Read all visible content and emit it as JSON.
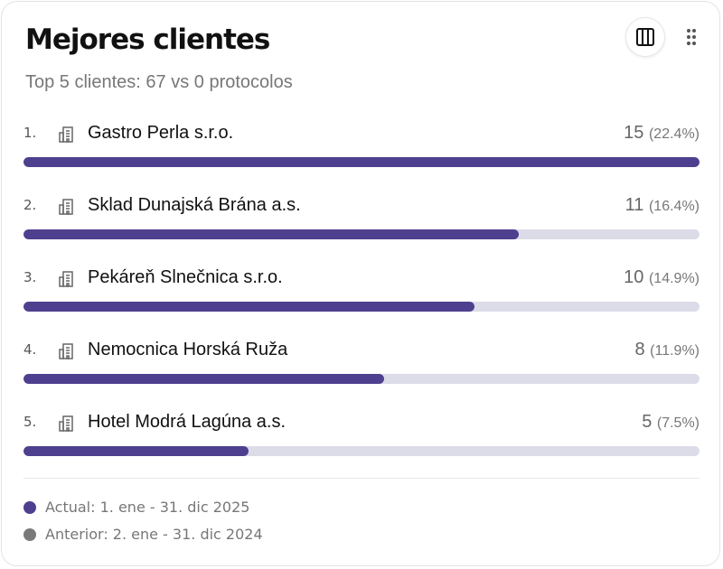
{
  "header": {
    "title": "Mejores clientes",
    "subtitle": "Top 5 clientes: 67 vs 0 protocolos",
    "column_button_icon": "columns-icon",
    "drag_handle_icon": "drag-dots-icon"
  },
  "colors": {
    "bar": "#4f3f8f",
    "track": "#dcdbe8",
    "previous": "#7a7a7a"
  },
  "clients": [
    {
      "rank": "1.",
      "name": "Gastro Perla s.r.o.",
      "value": "15",
      "pct": "(22.4%)",
      "share_of_max": 1.0
    },
    {
      "rank": "2.",
      "name": "Sklad Dunajská Brána a.s.",
      "value": "11",
      "pct": "(16.4%)",
      "share_of_max": 0.733
    },
    {
      "rank": "3.",
      "name": "Pekáreň Slnečnica s.r.o.",
      "value": "10",
      "pct": "(14.9%)",
      "share_of_max": 0.667
    },
    {
      "rank": "4.",
      "name": "Nemocnica Horská Ruža",
      "value": "8",
      "pct": "(11.9%)",
      "share_of_max": 0.533
    },
    {
      "rank": "5.",
      "name": "Hotel Modrá Lagúna a.s.",
      "value": "5",
      "pct": "(7.5%)",
      "share_of_max": 0.333
    }
  ],
  "legend": {
    "current": "Actual: 1. ene - 31. dic 2025",
    "previous": "Anterior: 2. ene - 31. dic 2024"
  }
}
